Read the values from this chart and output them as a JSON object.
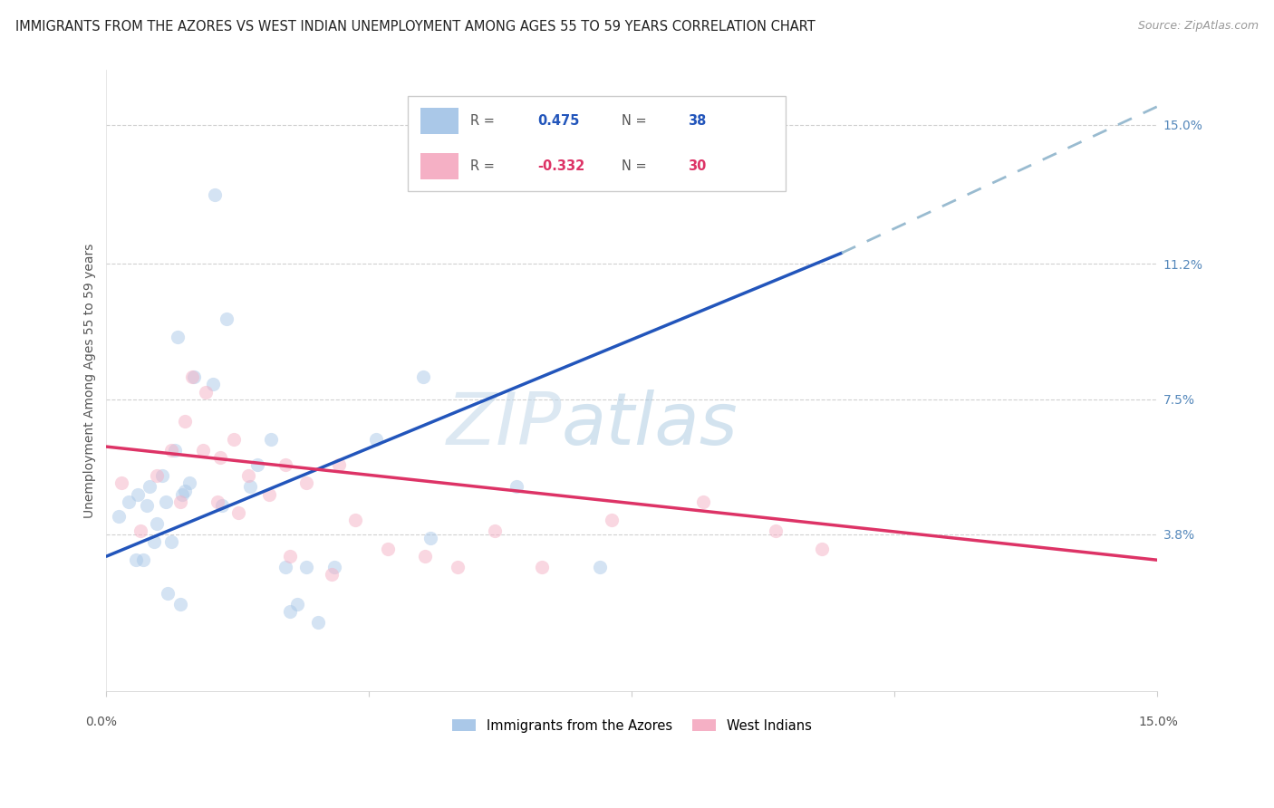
{
  "title": "IMMIGRANTS FROM THE AZORES VS WEST INDIAN UNEMPLOYMENT AMONG AGES 55 TO 59 YEARS CORRELATION CHART",
  "source": "Source: ZipAtlas.com",
  "ylabel": "Unemployment Among Ages 55 to 59 years",
  "xlim": [
    0,
    15
  ],
  "ylim": [
    -0.5,
    16.5
  ],
  "ytick_vals": [
    0,
    3.8,
    7.5,
    11.2,
    15.0
  ],
  "ytick_labels": [
    "",
    "3.8%",
    "7.5%",
    "11.2%",
    "15.0%"
  ],
  "watermark_part1": "ZIP",
  "watermark_part2": "atlas",
  "legend_blue_r_val": "0.475",
  "legend_blue_n_val": "38",
  "legend_pink_r_val": "-0.332",
  "legend_pink_n_val": "30",
  "legend_label_blue": "Immigrants from the Azores",
  "legend_label_pink": "West Indians",
  "blue_scatter_color": "#aac8e8",
  "pink_scatter_color": "#f5b0c5",
  "blue_line_color": "#2255bb",
  "pink_line_color": "#dd3366",
  "dashed_line_color": "#99bbd0",
  "azores_x": [
    0.18,
    0.45,
    0.52,
    0.58,
    0.62,
    0.68,
    0.72,
    0.8,
    0.85,
    0.92,
    0.98,
    1.02,
    1.08,
    1.12,
    1.18,
    1.25,
    1.52,
    1.65,
    1.72,
    2.05,
    2.15,
    2.35,
    2.55,
    2.62,
    2.72,
    3.02,
    3.25,
    3.85,
    4.52,
    5.85,
    7.05,
    0.32,
    0.42,
    0.88,
    1.05,
    2.85,
    4.62,
    1.55
  ],
  "azores_y": [
    4.3,
    4.9,
    3.1,
    4.6,
    5.1,
    3.6,
    4.1,
    5.4,
    4.7,
    3.6,
    6.1,
    9.2,
    4.9,
    5.0,
    5.2,
    8.1,
    7.9,
    4.6,
    9.7,
    5.1,
    5.7,
    6.4,
    2.9,
    1.7,
    1.9,
    1.4,
    2.9,
    6.4,
    8.1,
    5.1,
    2.9,
    4.7,
    3.1,
    2.2,
    1.9,
    2.9,
    3.7,
    13.1
  ],
  "westindian_x": [
    0.22,
    0.48,
    0.72,
    0.92,
    1.05,
    1.22,
    1.42,
    1.62,
    1.82,
    2.02,
    2.32,
    2.55,
    2.85,
    3.32,
    3.55,
    4.02,
    4.55,
    5.02,
    5.55,
    6.22,
    7.22,
    8.52,
    9.55,
    10.22,
    1.12,
    1.38,
    1.58,
    1.88,
    2.62,
    3.22
  ],
  "westindian_y": [
    5.2,
    3.9,
    5.4,
    6.1,
    4.7,
    8.1,
    7.7,
    5.9,
    6.4,
    5.4,
    4.9,
    5.7,
    5.2,
    5.7,
    4.2,
    3.4,
    3.2,
    2.9,
    3.9,
    2.9,
    4.2,
    4.7,
    3.9,
    3.4,
    6.9,
    6.1,
    4.7,
    4.4,
    3.2,
    2.7
  ],
  "blue_line_x": [
    0.0,
    10.5
  ],
  "blue_line_y": [
    3.2,
    11.5
  ],
  "pink_line_x": [
    0.0,
    15.0
  ],
  "pink_line_y": [
    6.2,
    3.1
  ],
  "dash_line_x": [
    10.5,
    15.0
  ],
  "dash_line_y": [
    11.5,
    15.5
  ],
  "marker_size": 120,
  "marker_alpha": 0.5,
  "title_fontsize": 10.5,
  "source_fontsize": 9,
  "ylabel_fontsize": 10,
  "tick_fontsize": 10
}
